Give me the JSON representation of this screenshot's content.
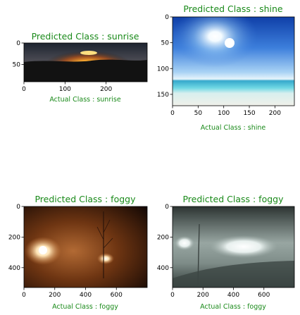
{
  "chart_data": [
    {
      "type": "image",
      "title": "Predicted Class : sunrise",
      "xlabel": "Actual Class : sunrise",
      "width": 300,
      "height": 90,
      "xticks": [
        0,
        100,
        200
      ],
      "yticks": [
        0,
        50
      ],
      "scene": "sunrise",
      "palette": {
        "sky": "#2b3340",
        "sun": "#ffd060",
        "glow": "#e07818",
        "ground": "#141414"
      }
    },
    {
      "type": "image",
      "title": "Predicted Class : shine",
      "xlabel": "Actual Class : shine",
      "width": 238,
      "height": 172,
      "xticks": [
        0,
        50,
        100,
        150,
        200
      ],
      "yticks": [
        0,
        50,
        100,
        150
      ],
      "scene": "shine",
      "palette": {
        "sky_top": "#1f57c2",
        "sky_mid": "#8cc0ee",
        "sea": "#57cfe0",
        "sand": "#e8ece8"
      }
    },
    {
      "type": "image",
      "title": "Predicted Class : foggy",
      "xlabel": "Actual Class : foggy",
      "width": 800,
      "height": 530,
      "xticks": [
        0,
        200,
        400,
        600
      ],
      "yticks": [
        0,
        200,
        400
      ],
      "scene": "foggy-night",
      "palette": {
        "fog": "#a0582a",
        "dark": "#1c0c04",
        "lamp": "#fff2d8"
      }
    },
    {
      "type": "image",
      "title": "Predicted Class : foggy",
      "xlabel": "Actual Class : foggy",
      "width": 800,
      "height": 530,
      "xticks": [
        0,
        200,
        400,
        600
      ],
      "yticks": [
        0,
        200,
        400
      ],
      "scene": "foggy-day",
      "palette": {
        "fog": "#8a9a96",
        "dark": "#2c3432",
        "light": "#ffffff"
      }
    }
  ]
}
